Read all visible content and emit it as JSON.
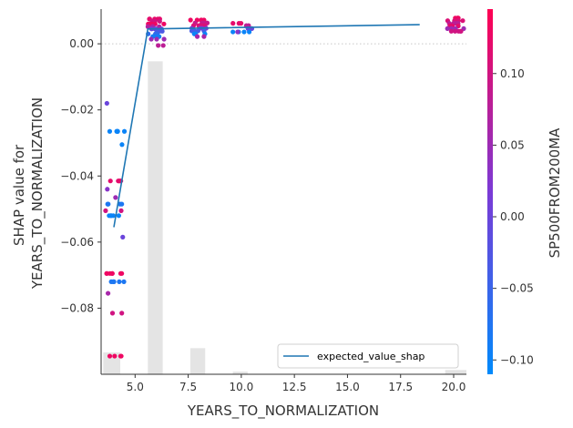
{
  "chart_data": {
    "type": "scatter",
    "title": "",
    "xlabel": "YEARS_TO_NORMALIZATION",
    "ylabel_lines": [
      "SHAP value for",
      "YEARS_TO_NORMALIZATION"
    ],
    "xlim": [
      3.4,
      20.6
    ],
    "ylim": [
      -0.1,
      0.0105
    ],
    "x_ticks": [
      5.0,
      7.5,
      10.0,
      12.5,
      15.0,
      17.5,
      20.0
    ],
    "x_tick_labels": [
      "5.0",
      "7.5",
      "10.0",
      "12.5",
      "15.0",
      "17.5",
      "20.0"
    ],
    "y_ticks": [
      0.0,
      -0.02,
      -0.04,
      -0.06,
      -0.08
    ],
    "y_tick_labels": [
      "0.00",
      "−0.02",
      "−0.04",
      "−0.06",
      "−0.08"
    ],
    "zero_line": true,
    "histogram": {
      "color": "#e4e4e4",
      "ymin": -0.1,
      "bars": [
        {
          "x0": 3.5,
          "x1": 4.3,
          "top": -0.0934
        },
        {
          "x0": 5.6,
          "x1": 6.3,
          "top": -0.0053
        },
        {
          "x0": 7.6,
          "x1": 8.3,
          "top": -0.0921
        },
        {
          "x0": 9.6,
          "x1": 10.3,
          "top": -0.0992
        },
        {
          "x0": 19.6,
          "x1": 20.6,
          "top": -0.0987
        }
      ]
    },
    "expected_value_line": {
      "name": "expected_value_shap",
      "color": "#1f77b4",
      "x": [
        4.0,
        5.6,
        18.4
      ],
      "y": [
        -0.0555,
        0.0045,
        0.0058
      ]
    },
    "legend": {
      "placement": "lower-right",
      "entries": [
        "expected_value_shap"
      ]
    },
    "colorbar": {
      "label": "SP500FROM200MA",
      "range": [
        -0.11,
        0.145
      ],
      "ticks": [
        0.1,
        0.05,
        0.0,
        -0.05,
        -0.1
      ],
      "tick_labels": [
        "0.10",
        "0.05",
        "0.00",
        "−0.05",
        "−0.10"
      ],
      "color_low": "#008afb",
      "color_mid": "#7b3ad6",
      "color_high": "#ff0052"
    },
    "point_groups": [
      {
        "x_range": [
          3.5,
          4.5
        ],
        "points": [
          [
            -0.0265,
            -0.1
          ],
          [
            -0.0265,
            -0.1
          ],
          [
            -0.0265,
            -0.1
          ],
          [
            -0.0265,
            -0.1
          ],
          [
            -0.0265,
            -0.1
          ],
          [
            -0.0265,
            -0.1
          ],
          [
            -0.018,
            0.0
          ],
          [
            -0.0305,
            -0.1
          ],
          [
            -0.0415,
            0.12
          ],
          [
            -0.0415,
            0.12
          ],
          [
            -0.0415,
            0.12
          ],
          [
            -0.0415,
            0.12
          ],
          [
            -0.0415,
            0.12
          ],
          [
            -0.044,
            0.03
          ],
          [
            -0.0465,
            0.05
          ],
          [
            -0.0485,
            -0.08
          ],
          [
            -0.0485,
            -0.08
          ],
          [
            -0.0485,
            -0.08
          ],
          [
            -0.0485,
            -0.08
          ],
          [
            -0.0505,
            0.1
          ],
          [
            -0.0505,
            0.1
          ],
          [
            -0.052,
            -0.1
          ],
          [
            -0.052,
            -0.1
          ],
          [
            -0.052,
            -0.1
          ],
          [
            -0.052,
            -0.1
          ],
          [
            -0.052,
            -0.1
          ],
          [
            -0.0585,
            0.0
          ],
          [
            -0.0695,
            0.13
          ],
          [
            -0.0695,
            0.13
          ],
          [
            -0.0695,
            0.13
          ],
          [
            -0.0695,
            0.13
          ],
          [
            -0.0695,
            0.13
          ],
          [
            -0.0695,
            0.13
          ],
          [
            -0.0695,
            0.13
          ],
          [
            -0.072,
            -0.08
          ],
          [
            -0.072,
            -0.08
          ],
          [
            -0.072,
            -0.08
          ],
          [
            -0.072,
            -0.08
          ],
          [
            -0.072,
            -0.08
          ],
          [
            -0.0755,
            0.06
          ],
          [
            -0.0815,
            0.1
          ],
          [
            -0.0815,
            0.1
          ],
          [
            -0.0945,
            0.13
          ],
          [
            -0.0945,
            0.13
          ],
          [
            -0.0945,
            0.13
          ],
          [
            -0.0945,
            0.13
          ]
        ]
      },
      {
        "x_range": [
          5.6,
          6.4
        ],
        "points": [
          [
            0.0075,
            0.12
          ],
          [
            0.0075,
            0.12
          ],
          [
            0.0075,
            0.12
          ],
          [
            0.0075,
            0.12
          ],
          [
            0.0075,
            0.12
          ],
          [
            0.0075,
            0.12
          ],
          [
            0.0068,
            0.1
          ],
          [
            0.0068,
            0.1
          ],
          [
            0.0068,
            0.1
          ],
          [
            0.0068,
            0.1
          ],
          [
            0.0068,
            0.1
          ],
          [
            0.006,
            0.13
          ],
          [
            0.006,
            0.13
          ],
          [
            0.006,
            0.13
          ],
          [
            0.006,
            0.13
          ],
          [
            0.006,
            0.13
          ],
          [
            0.0052,
            0.07
          ],
          [
            0.0052,
            0.07
          ],
          [
            0.0052,
            0.07
          ],
          [
            0.0052,
            0.07
          ],
          [
            0.0045,
            0.0
          ],
          [
            0.0045,
            0.0
          ],
          [
            0.0045,
            0.0
          ],
          [
            0.0045,
            0.0
          ],
          [
            0.0038,
            -0.03
          ],
          [
            0.0038,
            -0.03
          ],
          [
            0.0038,
            -0.03
          ],
          [
            0.0038,
            -0.03
          ],
          [
            0.003,
            -0.06
          ],
          [
            0.003,
            -0.06
          ],
          [
            0.003,
            -0.06
          ],
          [
            0.003,
            -0.06
          ],
          [
            0.0022,
            -0.09
          ],
          [
            0.0022,
            -0.09
          ],
          [
            0.0022,
            -0.09
          ],
          [
            0.0014,
            0.05
          ],
          [
            0.0014,
            0.05
          ],
          [
            0.0014,
            0.05
          ],
          [
            -0.0005,
            0.08
          ],
          [
            -0.0005,
            0.08
          ]
        ]
      },
      {
        "x_range": [
          7.6,
          8.4
        ],
        "points": [
          [
            0.0072,
            0.13
          ],
          [
            0.0072,
            0.13
          ],
          [
            0.0072,
            0.13
          ],
          [
            0.0072,
            0.13
          ],
          [
            0.0072,
            0.13
          ],
          [
            0.0063,
            0.09
          ],
          [
            0.0063,
            0.09
          ],
          [
            0.0063,
            0.09
          ],
          [
            0.0063,
            0.09
          ],
          [
            0.0055,
            0.11
          ],
          [
            0.0055,
            0.11
          ],
          [
            0.0055,
            0.11
          ],
          [
            0.0055,
            0.11
          ],
          [
            0.0055,
            0.11
          ],
          [
            0.0047,
            0.02
          ],
          [
            0.0047,
            0.02
          ],
          [
            0.0047,
            0.02
          ],
          [
            0.0047,
            0.02
          ],
          [
            0.0039,
            -0.04
          ],
          [
            0.0039,
            -0.04
          ],
          [
            0.0039,
            -0.04
          ],
          [
            0.0039,
            -0.04
          ],
          [
            0.003,
            -0.1
          ],
          [
            0.003,
            -0.1
          ],
          [
            0.003,
            -0.1
          ],
          [
            0.0022,
            0.06
          ],
          [
            0.0022,
            0.06
          ]
        ]
      },
      {
        "x_range": [
          9.6,
          10.5
        ],
        "points": [
          [
            0.0062,
            0.12
          ],
          [
            0.0062,
            0.12
          ],
          [
            0.0062,
            0.12
          ],
          [
            0.0055,
            0.08
          ],
          [
            0.0055,
            0.08
          ],
          [
            0.0046,
            0.0
          ],
          [
            0.0046,
            0.0
          ],
          [
            0.0036,
            -0.1
          ],
          [
            0.0036,
            -0.1
          ],
          [
            0.0036,
            -0.1
          ],
          [
            0.0036,
            -0.1
          ],
          [
            0.0036,
            0.03
          ]
        ]
      },
      {
        "x_range": [
          19.6,
          20.5
        ],
        "points": [
          [
            0.0078,
            0.13
          ],
          [
            0.0078,
            0.13
          ],
          [
            0.0078,
            0.13
          ],
          [
            0.0078,
            0.13
          ],
          [
            0.007,
            0.11
          ],
          [
            0.007,
            0.11
          ],
          [
            0.007,
            0.11
          ],
          [
            0.007,
            0.11
          ],
          [
            0.007,
            0.11
          ],
          [
            0.0062,
            0.08
          ],
          [
            0.0062,
            0.08
          ],
          [
            0.0062,
            0.08
          ],
          [
            0.0062,
            0.08
          ],
          [
            0.0054,
            0.12
          ],
          [
            0.0054,
            0.12
          ],
          [
            0.0054,
            0.12
          ],
          [
            0.0054,
            0.12
          ],
          [
            0.0054,
            0.12
          ],
          [
            0.0046,
            0.05
          ],
          [
            0.0046,
            0.05
          ],
          [
            0.0046,
            0.05
          ],
          [
            0.0046,
            0.05
          ],
          [
            0.0038,
            0.1
          ],
          [
            0.0038,
            0.1
          ],
          [
            0.0038,
            0.1
          ],
          [
            0.0038,
            0.1
          ],
          [
            0.0038,
            0.1
          ]
        ]
      }
    ]
  }
}
